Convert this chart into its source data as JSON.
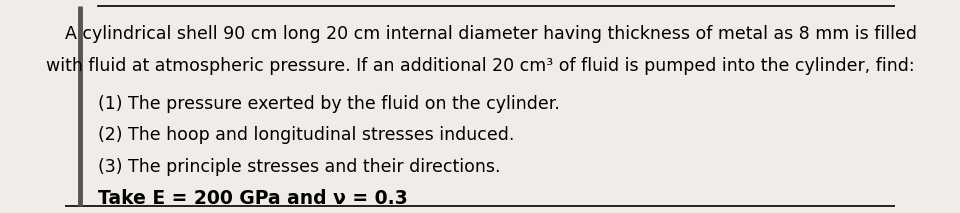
{
  "background_color": "#f0ede8",
  "top_line_color": "#000000",
  "bottom_line_color": "#000000",
  "left_bar_color": "#555555",
  "line1": "    A cylindrical shell 90 cm long 20 cm internal diameter having thickness of metal as 8 mm is filled",
  "line2": "with fluid at atmospheric pressure. If an additional 20 cm³ of fluid is pumped into the cylinder, find:",
  "line3": "(1) The pressure exerted by the fluid on the cylinder.",
  "line4": "(2) The hoop and longitudinal stresses induced.",
  "line5": "(3) The principle stresses and their directions.",
  "line6": "Take E = 200 GPa and ν = 0.3",
  "font_size_main": 12.5,
  "font_size_items": 12.5,
  "font_size_take": 13.5,
  "font_family": "DejaVu Sans"
}
